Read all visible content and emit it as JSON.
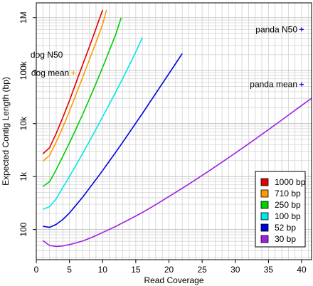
{
  "chart_data": {
    "type": "line",
    "title": "",
    "xlabel": "Read Coverage",
    "ylabel": "Expected Contig Length (bp)",
    "y_scale": "log10",
    "xlim": [
      0,
      41.5
    ],
    "ylim": [
      27,
      1900000
    ],
    "grid": true,
    "legend_position": "bottom-right",
    "x_ticks": [
      0,
      5,
      10,
      15,
      20,
      25,
      30,
      35,
      40
    ],
    "y_ticks": [
      {
        "value": 100,
        "label": "100"
      },
      {
        "value": 1000,
        "label": "1k"
      },
      {
        "value": 10000,
        "label": "10k"
      },
      {
        "value": 100000,
        "label": "100k"
      },
      {
        "value": 1000000,
        "label": "1M"
      }
    ],
    "series": [
      {
        "name": "1000 bp",
        "color": "#e00000",
        "x": [
          1,
          2,
          3,
          4,
          5,
          6,
          7,
          8,
          9,
          10
        ],
        "y": [
          2700,
          3500,
          6500,
          13000,
          27000,
          60000,
          130000,
          280000,
          620000,
          1400000
        ]
      },
      {
        "name": "710 bp",
        "color": "#ff9a00",
        "x": [
          1,
          2,
          3,
          4,
          5,
          6,
          7,
          8,
          9,
          10,
          10.6
        ],
        "y": [
          1950,
          2500,
          4500,
          8500,
          17000,
          36000,
          75000,
          160000,
          340000,
          750000,
          1400000
        ]
      },
      {
        "name": "250 bp",
        "color": "#00d000",
        "x": [
          1,
          2,
          3,
          4,
          5,
          6,
          7,
          8,
          9,
          10,
          11,
          12,
          12.8
        ],
        "y": [
          650,
          800,
          1350,
          2400,
          4300,
          8000,
          15000,
          29000,
          57000,
          115000,
          235000,
          490000,
          1000000
        ]
      },
      {
        "name": "100 bp",
        "color": "#00e8e8",
        "x": [
          1,
          2,
          3,
          4,
          5,
          6,
          7,
          8,
          9,
          10,
          11,
          12,
          13,
          14,
          15,
          16
        ],
        "y": [
          240,
          270,
          380,
          620,
          1000,
          1650,
          2750,
          4600,
          7800,
          13500,
          23000,
          40000,
          70000,
          125000,
          225000,
          420000
        ]
      },
      {
        "name": "52 bp",
        "color": "#0000dd",
        "x": [
          1,
          2,
          3,
          4,
          5,
          6,
          7,
          8,
          9,
          10,
          11,
          12,
          13,
          14,
          15,
          16,
          17,
          18,
          19,
          20,
          21,
          22
        ],
        "y": [
          115,
          110,
          125,
          155,
          205,
          290,
          410,
          600,
          880,
          1300,
          1950,
          2900,
          4400,
          6700,
          10200,
          15500,
          24000,
          37000,
          57000,
          88000,
          135000,
          210000
        ]
      },
      {
        "name": "30 bp",
        "color": "#a020e0",
        "x": [
          1,
          2,
          3,
          4,
          5,
          6,
          7,
          8,
          9,
          10,
          12,
          14,
          16,
          18,
          20,
          22,
          24,
          26,
          28,
          30,
          32,
          34,
          36,
          38,
          40,
          41.5
        ],
        "y": [
          62,
          50,
          48,
          49,
          52,
          56,
          61,
          68,
          77,
          88,
          115,
          155,
          210,
          295,
          420,
          600,
          870,
          1270,
          1870,
          2780,
          4150,
          6250,
          9450,
          14400,
          22000,
          30000
        ]
      }
    ],
    "annotations": [
      {
        "text": "dog N50",
        "x": 4,
        "y": 200000,
        "marker": false
      },
      {
        "text": "dog mean",
        "x": 5.6,
        "y": 90000,
        "marker": true,
        "marker_color": "#ff9a00"
      },
      {
        "text": "panda N50",
        "x": 40,
        "y": 600000,
        "marker": true,
        "marker_color": "#0000dd"
      },
      {
        "text": "panda mean",
        "x": 40,
        "y": 55000,
        "marker": true,
        "marker_color": "#0000dd"
      }
    ]
  }
}
